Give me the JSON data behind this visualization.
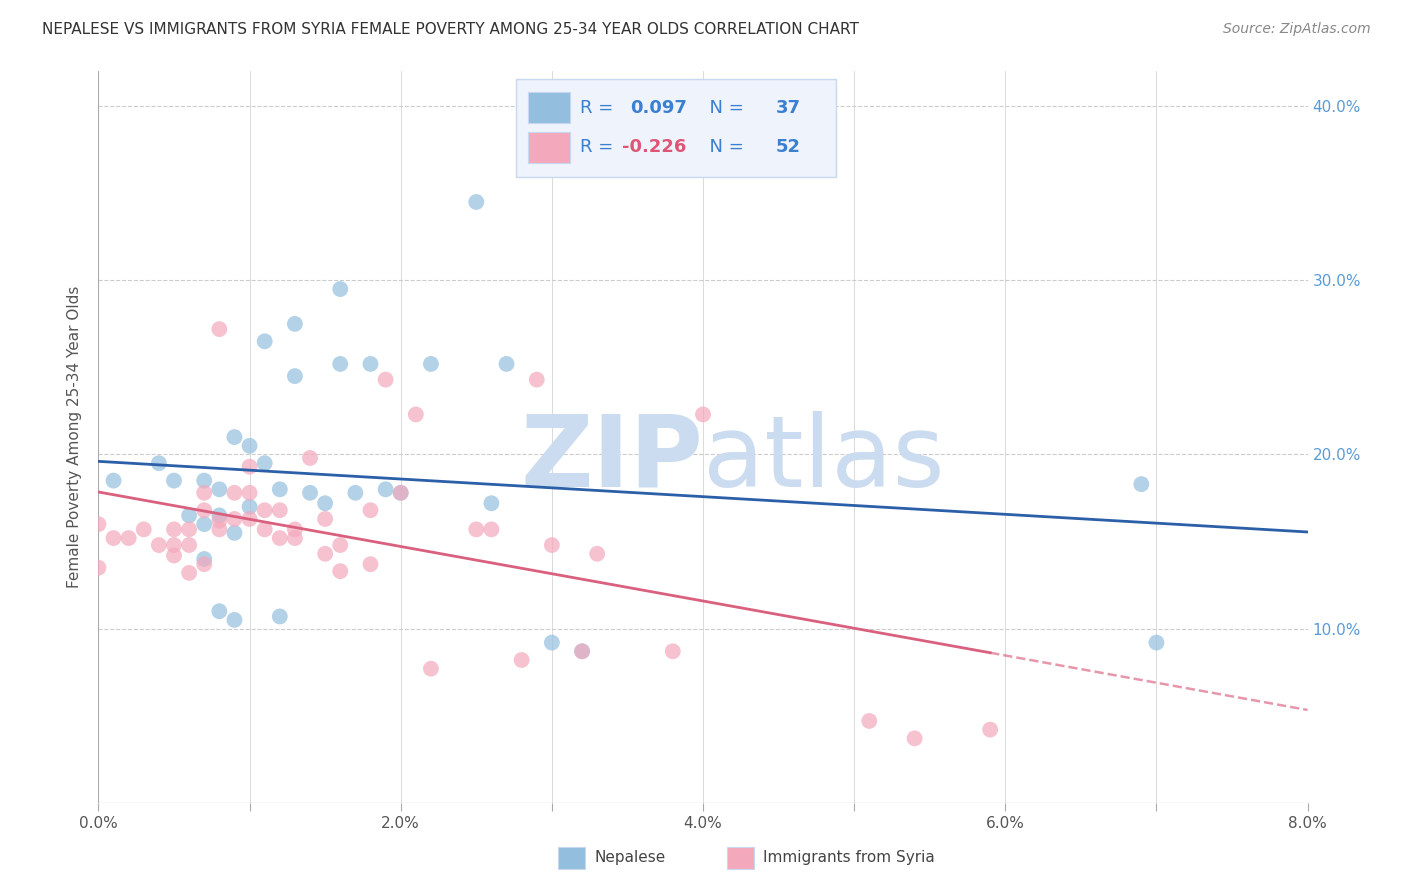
{
  "title": "NEPALESE VS IMMIGRANTS FROM SYRIA FEMALE POVERTY AMONG 25-34 YEAR OLDS CORRELATION CHART",
  "source": "Source: ZipAtlas.com",
  "ylabel": "Female Poverty Among 25-34 Year Olds",
  "xlim": [
    0.0,
    0.08
  ],
  "ylim": [
    0.0,
    0.42
  ],
  "x_ticks": [
    0.0,
    0.01,
    0.02,
    0.03,
    0.04,
    0.05,
    0.06,
    0.07,
    0.08
  ],
  "x_tick_labels": [
    "0.0%",
    "",
    "2.0%",
    "",
    "4.0%",
    "",
    "6.0%",
    "",
    "8.0%"
  ],
  "y_ticks": [
    0.0,
    0.1,
    0.2,
    0.3,
    0.4
  ],
  "y_tick_labels": [
    "",
    "10.0%",
    "20.0%",
    "30.0%",
    "40.0%"
  ],
  "nepalese_R": 0.097,
  "nepalese_N": 37,
  "syria_R": -0.226,
  "syria_N": 52,
  "blue_color": "#93bede",
  "pink_color": "#f4a8bc",
  "blue_line_color": "#2b5fa8",
  "pink_line_color": "#d9607e",
  "watermark_color": "#ccdcf0",
  "nepalese_x": [
    0.001,
    0.004,
    0.005,
    0.006,
    0.007,
    0.007,
    0.007,
    0.008,
    0.008,
    0.008,
    0.009,
    0.009,
    0.009,
    0.01,
    0.01,
    0.011,
    0.011,
    0.012,
    0.012,
    0.013,
    0.013,
    0.014,
    0.015,
    0.016,
    0.016,
    0.017,
    0.018,
    0.019,
    0.02,
    0.022,
    0.025,
    0.026,
    0.027,
    0.03,
    0.032,
    0.069,
    0.07
  ],
  "nepalese_y": [
    0.185,
    0.195,
    0.185,
    0.165,
    0.185,
    0.16,
    0.14,
    0.18,
    0.165,
    0.11,
    0.155,
    0.105,
    0.21,
    0.205,
    0.17,
    0.265,
    0.195,
    0.18,
    0.107,
    0.275,
    0.245,
    0.178,
    0.172,
    0.252,
    0.295,
    0.178,
    0.252,
    0.18,
    0.178,
    0.252,
    0.345,
    0.172,
    0.252,
    0.092,
    0.087,
    0.183,
    0.092
  ],
  "syria_x": [
    0.0,
    0.0,
    0.001,
    0.002,
    0.003,
    0.004,
    0.005,
    0.005,
    0.005,
    0.006,
    0.006,
    0.006,
    0.007,
    0.007,
    0.007,
    0.008,
    0.008,
    0.008,
    0.009,
    0.009,
    0.01,
    0.01,
    0.01,
    0.011,
    0.011,
    0.012,
    0.012,
    0.013,
    0.013,
    0.014,
    0.015,
    0.015,
    0.016,
    0.016,
    0.018,
    0.018,
    0.019,
    0.02,
    0.021,
    0.022,
    0.025,
    0.026,
    0.028,
    0.029,
    0.03,
    0.032,
    0.033,
    0.038,
    0.04,
    0.051,
    0.054,
    0.059
  ],
  "syria_y": [
    0.16,
    0.135,
    0.152,
    0.152,
    0.157,
    0.148,
    0.157,
    0.148,
    0.142,
    0.157,
    0.148,
    0.132,
    0.137,
    0.178,
    0.168,
    0.272,
    0.162,
    0.157,
    0.178,
    0.163,
    0.193,
    0.178,
    0.163,
    0.168,
    0.157,
    0.168,
    0.152,
    0.157,
    0.152,
    0.198,
    0.163,
    0.143,
    0.148,
    0.133,
    0.168,
    0.137,
    0.243,
    0.178,
    0.223,
    0.077,
    0.157,
    0.157,
    0.082,
    0.243,
    0.148,
    0.087,
    0.143,
    0.087,
    0.223,
    0.047,
    0.037,
    0.042
  ],
  "legend_facecolor": "#eef3fc",
  "legend_edgecolor": "#c8d8ee",
  "legend_text_color": "#3a7fd0",
  "legend_R_pink_color": "#e05575"
}
